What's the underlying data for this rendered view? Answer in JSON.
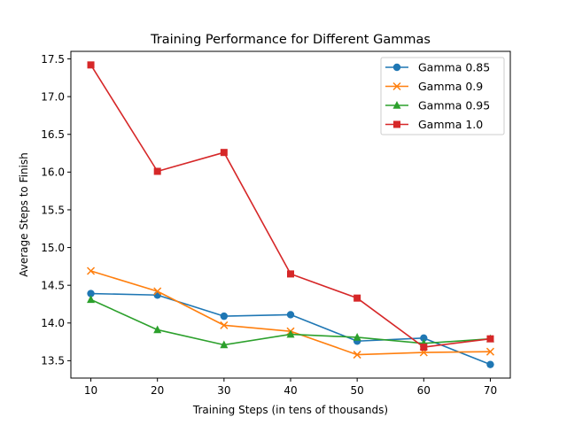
{
  "chart_data": {
    "type": "line",
    "title": "Training Performance for Different Gammas",
    "xlabel": "Training Steps (in tens of thousands)",
    "ylabel": "Average Steps to Finish",
    "x": [
      10,
      20,
      30,
      40,
      50,
      60,
      70
    ],
    "xlim": [
      7,
      73
    ],
    "ylim": [
      13.27,
      17.6
    ],
    "xticks": [
      10,
      20,
      30,
      40,
      50,
      60,
      70
    ],
    "yticks": [
      "13.5",
      "14.0",
      "14.5",
      "15.0",
      "15.5",
      "16.0",
      "16.5",
      "17.0",
      "17.5"
    ],
    "grid": false,
    "legend_position": "top-right",
    "series": [
      {
        "name": "Gamma 0.85",
        "color": "#1f77b4",
        "marker": "circle",
        "values": [
          14.39,
          14.37,
          14.09,
          14.11,
          13.76,
          13.8,
          13.45
        ]
      },
      {
        "name": "Gamma 0.9",
        "color": "#ff7f0e",
        "marker": "x",
        "values": [
          14.69,
          14.42,
          13.97,
          13.89,
          13.58,
          13.61,
          13.62
        ]
      },
      {
        "name": "Gamma 0.95",
        "color": "#2ca02c",
        "marker": "triangle",
        "values": [
          14.31,
          13.91,
          13.71,
          13.85,
          13.81,
          13.73,
          13.79
        ]
      },
      {
        "name": "Gamma 1.0",
        "color": "#d62728",
        "marker": "square",
        "values": [
          17.42,
          16.01,
          16.26,
          14.65,
          14.33,
          13.68,
          13.79
        ]
      }
    ]
  }
}
